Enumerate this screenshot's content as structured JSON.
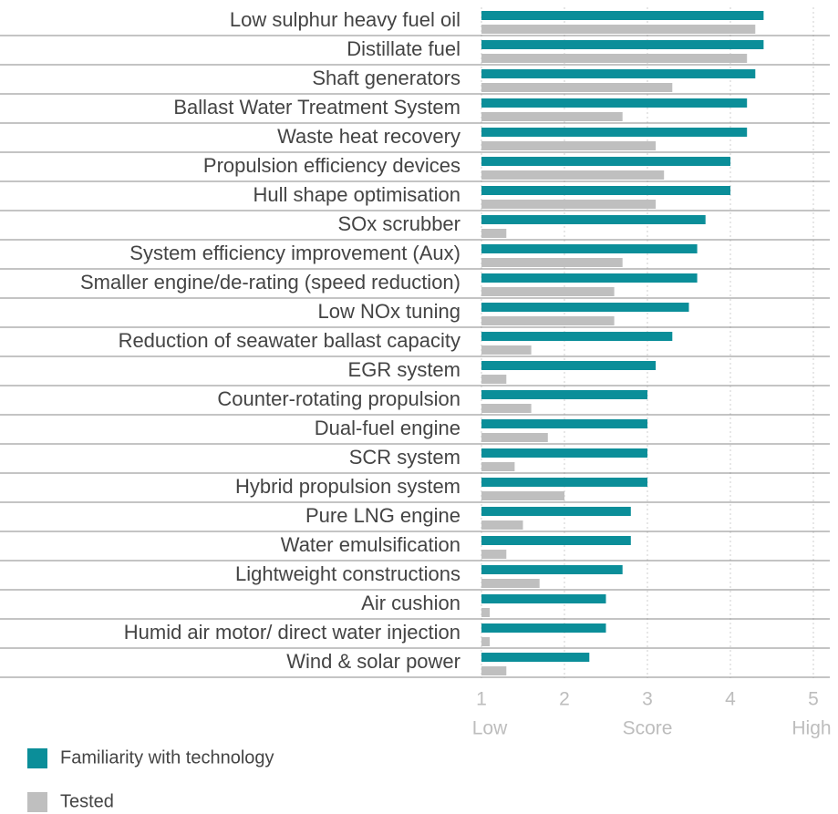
{
  "chart_data": {
    "type": "bar",
    "orientation": "horizontal",
    "categories": [
      "Low sulphur heavy fuel oil",
      "Distillate fuel",
      "Shaft generators",
      "Ballast Water Treatment System",
      "Waste heat recovery",
      "Propulsion efficiency devices",
      "Hull shape optimisation",
      "SOx scrubber",
      "System efficiency improvement (Aux)",
      "Smaller engine/de-rating (speed reduction)",
      "Low NOx tuning",
      "Reduction of seawater ballast capacity",
      "EGR system",
      "Counter-rotating propulsion",
      "Dual-fuel engine",
      "SCR system",
      "Hybrid propulsion system",
      "Pure LNG engine",
      "Water emulsification",
      "Lightweight constructions",
      "Air cushion",
      "Humid air motor/ direct water injection",
      "Wind & solar power"
    ],
    "series": [
      {
        "name": "Familiarity with technology",
        "color": "#0b8e99",
        "values": [
          4.4,
          4.4,
          4.3,
          4.2,
          4.2,
          4.0,
          4.0,
          3.7,
          3.6,
          3.6,
          3.5,
          3.3,
          3.1,
          3.0,
          3.0,
          3.0,
          3.0,
          2.8,
          2.8,
          2.7,
          2.5,
          2.5,
          2.3
        ]
      },
      {
        "name": "Tested",
        "color": "#bfbfbf",
        "values": [
          4.3,
          4.2,
          3.3,
          2.7,
          3.1,
          3.2,
          3.1,
          1.3,
          2.7,
          2.6,
          2.6,
          1.6,
          1.3,
          1.6,
          1.8,
          1.4,
          2.0,
          1.5,
          1.3,
          1.7,
          1.1,
          1.1,
          1.3
        ]
      }
    ],
    "xlim": [
      1,
      5
    ],
    "xticks": [
      1,
      2,
      3,
      4,
      5
    ],
    "xlabel": "Score",
    "low_label": "Low",
    "high_label": "High",
    "grid": true,
    "legend": "bottom-left"
  }
}
